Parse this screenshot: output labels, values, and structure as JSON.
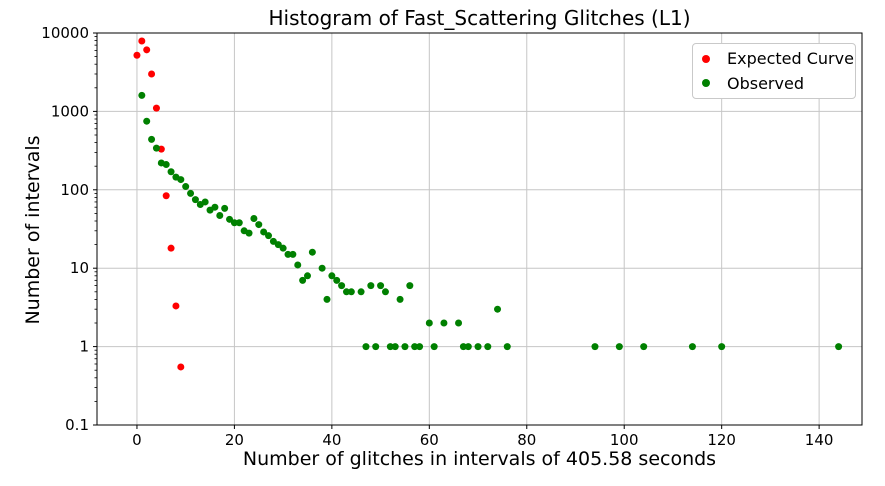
{
  "figure": {
    "title": "Histogram of Fast_Scattering Glitches (L1)",
    "xlabel": "Number of glitches in intervals of 405.58 seconds",
    "ylabel": "Number of intervals"
  },
  "legend": {
    "items": [
      {
        "label": "Expected Curve",
        "marker": "red-dot-icon",
        "color": "#ff0000"
      },
      {
        "label": "Observed",
        "marker": "green-dot-icon",
        "color": "#008000"
      }
    ]
  },
  "chart_data": {
    "type": "scatter",
    "title": "Histogram of Fast_Scattering Glitches (L1)",
    "xlabel": "Number of glitches in intervals of 405.58 seconds",
    "ylabel": "Number of intervals",
    "x_scale": "linear",
    "y_scale": "log",
    "xlim": [
      -8.2,
      148.8
    ],
    "ylim": [
      0.1,
      10000
    ],
    "x_ticks": [
      0,
      20,
      40,
      60,
      80,
      100,
      120,
      140
    ],
    "y_ticks": [
      0.1,
      1,
      10,
      100,
      1000,
      10000
    ],
    "y_tick_labels": [
      "0.1",
      "1",
      "10",
      "100",
      "1000",
      "10000"
    ],
    "grid": true,
    "grid_color": "#c6c6c6",
    "legend_position": "upper right",
    "marker_radius": 3.5,
    "series": [
      {
        "name": "Expected Curve",
        "color": "#ff0000",
        "points": [
          [
            0,
            5200
          ],
          [
            1,
            7900
          ],
          [
            2,
            6100
          ],
          [
            3,
            3000
          ],
          [
            4,
            1100
          ],
          [
            5,
            330
          ],
          [
            6,
            84
          ],
          [
            7,
            18
          ],
          [
            8,
            3.3
          ],
          [
            9,
            0.55
          ]
        ]
      },
      {
        "name": "Observed",
        "color": "#008000",
        "points": [
          [
            1,
            1600
          ],
          [
            2,
            750
          ],
          [
            3,
            440
          ],
          [
            4,
            340
          ],
          [
            5,
            220
          ],
          [
            6,
            210
          ],
          [
            7,
            170
          ],
          [
            8,
            145
          ],
          [
            9,
            135
          ],
          [
            10,
            110
          ],
          [
            11,
            90
          ],
          [
            12,
            75
          ],
          [
            13,
            65
          ],
          [
            14,
            70
          ],
          [
            15,
            55
          ],
          [
            16,
            60
          ],
          [
            17,
            47
          ],
          [
            18,
            58
          ],
          [
            19,
            42
          ],
          [
            20,
            38
          ],
          [
            21,
            38
          ],
          [
            22,
            30
          ],
          [
            23,
            28
          ],
          [
            24,
            43
          ],
          [
            25,
            36
          ],
          [
            26,
            29
          ],
          [
            27,
            26
          ],
          [
            28,
            22
          ],
          [
            29,
            20
          ],
          [
            30,
            18
          ],
          [
            31,
            15
          ],
          [
            32,
            15
          ],
          [
            33,
            11
          ],
          [
            34,
            7
          ],
          [
            35,
            8
          ],
          [
            36,
            16
          ],
          [
            38,
            10
          ],
          [
            39,
            4
          ],
          [
            40,
            8
          ],
          [
            41,
            7
          ],
          [
            42,
            6
          ],
          [
            43,
            5
          ],
          [
            44,
            5
          ],
          [
            46,
            5
          ],
          [
            47,
            1
          ],
          [
            48,
            6
          ],
          [
            49,
            1
          ],
          [
            50,
            6
          ],
          [
            51,
            5
          ],
          [
            52,
            1
          ],
          [
            53,
            1
          ],
          [
            54,
            4
          ],
          [
            55,
            1
          ],
          [
            56,
            6
          ],
          [
            57,
            1
          ],
          [
            58,
            1
          ],
          [
            60,
            2
          ],
          [
            61,
            1
          ],
          [
            63,
            2
          ],
          [
            66,
            2
          ],
          [
            67,
            1
          ],
          [
            68,
            1
          ],
          [
            70,
            1
          ],
          [
            72,
            1
          ],
          [
            74,
            3
          ],
          [
            76,
            1
          ],
          [
            94,
            1
          ],
          [
            99,
            1
          ],
          [
            104,
            1
          ],
          [
            114,
            1
          ],
          [
            120,
            1
          ],
          [
            144,
            1
          ]
        ]
      }
    ]
  }
}
